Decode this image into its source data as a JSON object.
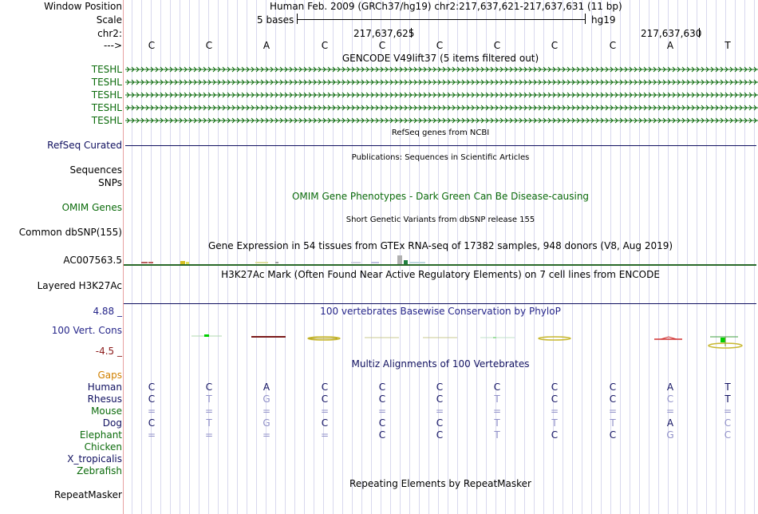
{
  "left_labels": {
    "window_position": "Window Position",
    "scale": "Scale",
    "chrom": "chr2:",
    "arrow": "--->",
    "teshl": [
      "TESHL",
      "TESHL",
      "TESHL",
      "TESHL",
      "TESHL"
    ],
    "refseq": "RefSeq Curated",
    "sequences": "Sequences",
    "snps": "SNPs",
    "omim": "OMIM Genes",
    "dbsnp": "Common dbSNP(155)",
    "ac007563": "AC007563.5",
    "h3k27ac": "Layered H3K27Ac",
    "phylop_max": "4.88 _",
    "vert_cons": "100 Vert. Cons",
    "phylop_min": "-4.5 _",
    "gaps": "Gaps",
    "repeatmasker": "RepeatMasker"
  },
  "header": {
    "assembly_position": "Human Feb. 2009 (GRCh37/hg19)   chr2:217,637,621-217,637,631 (11 bp)",
    "scale_bases": "5 bases",
    "scale_db": "hg19",
    "coord_1": "217,637,625",
    "coord_2": "217,637,630"
  },
  "bases": [
    "C",
    "C",
    "A",
    "C",
    "C",
    "C",
    "C",
    "C",
    "C",
    "A",
    "T"
  ],
  "track_titles": {
    "gencode": "GENCODE V49lift37 (5 items filtered out)",
    "refseq": "RefSeq genes from NCBI",
    "publications": "Publications: Sequences in Scientific Articles",
    "omim": "OMIM Gene Phenotypes - Dark Green Can Be Disease-causing",
    "dbsnp": "Short Genetic Variants from dbSNP release 155",
    "gtex": "Gene Expression in 54 tissues from GTEx RNA-seq of 17382 samples, 948 donors (V8, Aug 2019)",
    "h3k27ac": "H3K27Ac Mark (Often Found Near Active Regulatory Elements) on 7 cell lines from ENCODE",
    "phylop": "100 vertebrates Basewise Conservation by PhyloP",
    "multiz": "Multiz Alignments of 100 Vertebrates",
    "repeatmasker": "Repeating Elements by RepeatMasker"
  },
  "alignment": [
    {
      "species": "Human",
      "bases": [
        "C",
        "C",
        "A",
        "C",
        "C",
        "C",
        "C",
        "C",
        "C",
        "A",
        "T"
      ],
      "color": "navy"
    },
    {
      "species": "Rhesus",
      "bases": [
        "C",
        "T",
        "G",
        "C",
        "C",
        "C",
        "T",
        "C",
        "C",
        "C",
        "T"
      ],
      "color": "navy"
    },
    {
      "species": "Mouse",
      "bases": [
        "=",
        "=",
        "=",
        "=",
        "=",
        "=",
        "=",
        "=",
        "=",
        "=",
        "="
      ],
      "color": "green"
    },
    {
      "species": "Dog",
      "bases": [
        "C",
        "T",
        "G",
        "C",
        "C",
        "C",
        "T",
        "T",
        "T",
        "A",
        "C"
      ],
      "color": "navy"
    },
    {
      "species": "Elephant",
      "bases": [
        "=",
        "=",
        "=",
        "=",
        "C",
        "C",
        "T",
        "C",
        "C",
        "G",
        "C"
      ],
      "color": "green"
    },
    {
      "species": "Chicken",
      "bases": [],
      "color": "green"
    },
    {
      "species": "X_tropicalis",
      "bases": [],
      "color": "navy"
    },
    {
      "species": "Zebrafish",
      "bases": [],
      "color": "green"
    }
  ],
  "alignment_highlight": [
    [
      1,
      1,
      1,
      1,
      1,
      1,
      1,
      1,
      1,
      1,
      1
    ],
    [
      1,
      0,
      0,
      1,
      1,
      1,
      0,
      1,
      1,
      0,
      1
    ],
    [
      0,
      0,
      0,
      0,
      0,
      0,
      0,
      0,
      0,
      0,
      0
    ],
    [
      1,
      0,
      0,
      1,
      1,
      1,
      0,
      0,
      0,
      1,
      0
    ],
    [
      0,
      0,
      0,
      0,
      1,
      1,
      0,
      1,
      1,
      0,
      0
    ]
  ],
  "colors": {
    "navy": "#101060",
    "dark_green": "#0b6b0b",
    "track_blue": "#26268a",
    "gaps_orange": "#d08000",
    "separator": "#e8a0a0"
  }
}
